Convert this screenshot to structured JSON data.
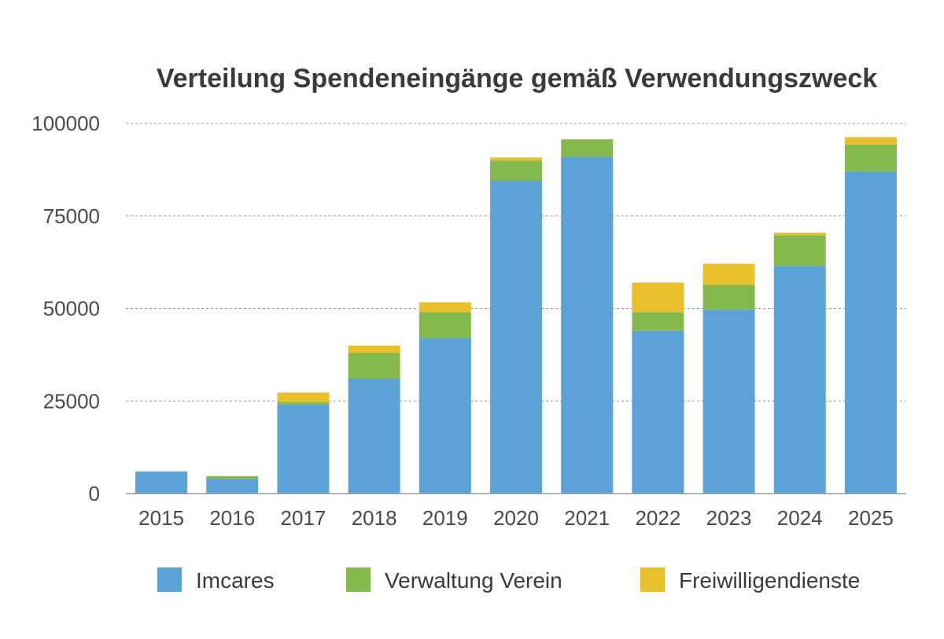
{
  "chart_data": {
    "type": "bar",
    "stacked": true,
    "title": "Verteilung Spendeneingänge gemäß Verwendungszweck",
    "xlabel": "",
    "ylabel": "",
    "ylim": [
      0,
      100000
    ],
    "yticks": [
      "0",
      "25000",
      "50000",
      "75000",
      "100000"
    ],
    "ytick_values": [
      0,
      25000,
      50000,
      75000,
      100000
    ],
    "grid": true,
    "legend_position": "bottom",
    "categories": [
      "2015",
      "2016",
      "2017",
      "2018",
      "2019",
      "2020",
      "2021",
      "2022",
      "2023",
      "2024",
      "2025"
    ],
    "series": [
      {
        "name": "Imcares",
        "color": "#5ba2d7",
        "values": [
          6000,
          4000,
          24000,
          31000,
          42000,
          84500,
          91000,
          44000,
          49700,
          61500,
          87000
        ]
      },
      {
        "name": "Verwaltung Verein",
        "color": "#85b94d",
        "values": [
          0,
          700,
          800,
          7000,
          7000,
          5500,
          4700,
          5000,
          6700,
          8300,
          7300
        ]
      },
      {
        "name": "Freiwilligendienste",
        "color": "#e8bf2c",
        "values": [
          0,
          0,
          2500,
          2000,
          2700,
          800,
          0,
          8000,
          5700,
          700,
          2000
        ]
      }
    ]
  }
}
